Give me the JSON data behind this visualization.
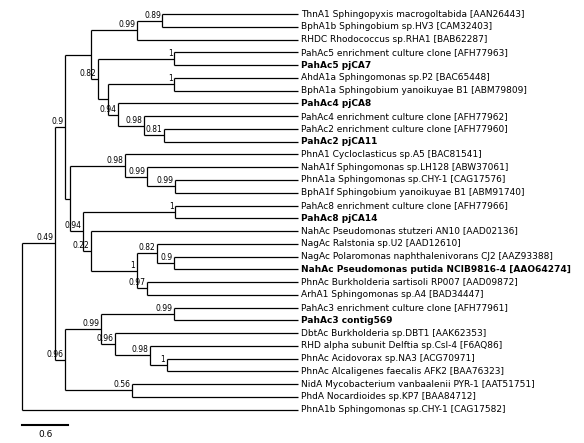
{
  "font_size": 6.5,
  "bold_labels": [
    "PahAc5 pjCA7",
    "PahAc4 pjCA8",
    "PahAc2 pjCA11",
    "PahAc8 pjCA14",
    "NahAc Pseudomonas putida NCIB9816-4 [AAO64274]",
    "PahAc3 contig569"
  ],
  "scale_bar_label": "0.6",
  "leaf_order": [
    "ThnA1 Sphingopyxis macrogoltabida [AAN26443]",
    "BphA1b Sphingobium sp.HV3 [CAM32403]",
    "RHDC Rhodococcus sp.RHA1 [BAB62287]",
    "PahAc5 enrichment culture clone [AFH77963]",
    "PahAc5 pjCA7",
    "AhdA1a Sphingomonas sp.P2 [BAC65448]",
    "BphA1a Sphingobium yanoikuyae B1 [ABM79809]",
    "PahAc4 pjCA8",
    "PahAc4 enrichment culture clone [AFH77962]",
    "PahAc2 enrichment culture clone [AFH77960]",
    "PahAc2 pjCA11",
    "PhnA1 Cycloclasticus sp.A5 [BAC81541]",
    "NahA1f Sphingomonas sp.LH128 [ABW37061]",
    "PhnA1a Sphingomonas sp.CHY-1 [CAG17576]",
    "BphA1f Sphingobium yanoikuyae B1 [ABM91740]",
    "PahAc8 enrichment culture clone [AFH77966]",
    "PahAc8 pjCA14",
    "NahAc Pseudomonas stutzeri AN10 [AAD02136]",
    "NagAc Ralstonia sp.U2 [AAD12610]",
    "NagAc Polaromonas naphthalenivorans CJ2 [AAZ93388]",
    "NahAc Pseudomonas putida NCIB9816-4 [AAO64274]",
    "PhnAc Burkholderia sartisoli RP007 [AAD09872]",
    "ArhA1 Sphingomonas sp.A4 [BAD34447]",
    "PahAc3 enrichment culture clone [AFH77961]",
    "PahAc3 contig569",
    "DbtAc Burkholderia sp.DBT1 [AAK62353]",
    "RHD alpha subunit Delftia sp.Csl-4 [F6AQ86]",
    "PhnAc Acidovorax sp.NA3 [ACG70971]",
    "PhnAc Alcaligenes faecalis AFK2 [BAA76323]",
    "NidA Mycobacterium vanbaalenii PYR-1 [AAT51751]",
    "PhdA Nocardioides sp.KP7 [BAA84712]",
    "PhnA1b Sphingomonas sp.CHY-1 [CAG17582]"
  ]
}
